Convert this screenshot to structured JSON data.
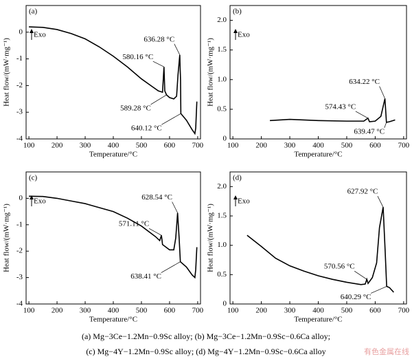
{
  "chart_data": [
    {
      "type": "line",
      "panel_label": "(a)",
      "direction_label": "Exo",
      "x_label": "Temperature/°C",
      "y_label": "Heat flow/(mW·mg⁻¹)",
      "color": "#000000",
      "x": [
        100,
        150,
        200,
        250,
        300,
        350,
        400,
        450,
        500,
        540,
        560,
        575,
        580.16,
        583,
        589.28,
        600,
        615,
        625,
        630,
        636.28,
        639,
        640.12,
        660,
        680,
        690,
        693,
        697
      ],
      "values": [
        0.2,
        0.18,
        0.1,
        -0.05,
        -0.25,
        -0.55,
        -0.9,
        -1.3,
        -1.75,
        -2.05,
        -2.2,
        -2.25,
        -1.3,
        -2.2,
        -2.35,
        -2.45,
        -2.5,
        -2.4,
        -1.6,
        -0.85,
        -1.8,
        -3.05,
        -3.3,
        -3.65,
        -3.8,
        -3.6,
        -2.6
      ],
      "xlim": [
        90,
        710
      ],
      "xticks": [
        100,
        200,
        300,
        400,
        500,
        600,
        700
      ],
      "ylim": [
        -4,
        1
      ],
      "yticks": [
        -4,
        -3,
        -2,
        -1,
        0
      ],
      "annotations": [
        "636.28 °C",
        "580.16 °C",
        "589.28 °C",
        "640.12 °C"
      ]
    },
    {
      "type": "line",
      "panel_label": "(b)",
      "direction_label": "Exo",
      "x_label": "Temperature/°C",
      "y_label": "Heat flow/(mW·mg⁻¹)",
      "color": "#000000",
      "x": [
        230,
        300,
        400,
        500,
        560,
        574.43,
        580,
        600,
        620,
        634.22,
        639.47,
        650,
        670
      ],
      "values": [
        0.31,
        0.33,
        0.31,
        0.3,
        0.3,
        0.35,
        0.29,
        0.3,
        0.38,
        0.68,
        0.28,
        0.29,
        0.32
      ],
      "xlim": [
        90,
        710
      ],
      "xticks": [
        100,
        200,
        300,
        400,
        500,
        600,
        700
      ],
      "ylim": [
        0,
        2.25
      ],
      "yticks": [
        0,
        {
          "value": 0.5,
          "label": "0.5"
        },
        {
          "value": 1,
          "label": "1.0"
        },
        {
          "value": 1.5,
          "label": "1.5"
        },
        {
          "value": 2,
          "label": "2.0"
        }
      ],
      "annotations": [
        "634.22 °C",
        "574.43 °C",
        "639.47 °C"
      ]
    },
    {
      "type": "line",
      "panel_label": "(c)",
      "direction_label": "Exo",
      "x_label": "Temperature/°C",
      "y_label": "Heat flow/(mW·mg⁻¹)",
      "color": "#000000",
      "x": [
        100,
        150,
        200,
        250,
        300,
        350,
        400,
        450,
        500,
        550,
        565,
        571.11,
        575,
        600,
        615,
        622,
        628.54,
        634,
        638.41,
        660,
        680,
        690,
        693,
        697
      ],
      "values": [
        0.08,
        0.07,
        0.0,
        -0.1,
        -0.2,
        -0.35,
        -0.5,
        -0.75,
        -1.05,
        -1.45,
        -1.6,
        -1.4,
        -1.75,
        -1.95,
        -1.95,
        -1.5,
        -0.55,
        -1.5,
        -2.4,
        -2.6,
        -2.9,
        -3.0,
        -2.7,
        -1.85
      ],
      "xlim": [
        90,
        710
      ],
      "xticks": [
        100,
        200,
        300,
        400,
        500,
        600,
        700
      ],
      "ylim": [
        -4,
        1
      ],
      "yticks": [
        -4,
        -3,
        -2,
        -1,
        0
      ],
      "annotations": [
        "628.54 °C",
        "571.11 °C",
        "638.41 °C"
      ]
    },
    {
      "type": "line",
      "panel_label": "(d)",
      "direction_label": "Exo",
      "x_label": "Temperature/°C",
      "y_label": "Heat flow/(mW·mg⁻¹)",
      "color": "#000000",
      "x": [
        150,
        200,
        250,
        300,
        350,
        400,
        450,
        500,
        550,
        565,
        570.56,
        575,
        590,
        605,
        615,
        627.92,
        635,
        640.29,
        650,
        665
      ],
      "values": [
        1.17,
        0.98,
        0.78,
        0.65,
        0.56,
        0.48,
        0.42,
        0.37,
        0.33,
        0.34,
        0.42,
        0.35,
        0.45,
        0.7,
        1.3,
        1.65,
        0.9,
        0.3,
        0.28,
        0.2
      ],
      "xlim": [
        90,
        710
      ],
      "xticks": [
        100,
        200,
        300,
        400,
        500,
        600,
        700
      ],
      "ylim": [
        0,
        2.25
      ],
      "yticks": [
        0,
        {
          "value": 0.5,
          "label": "0.5"
        },
        {
          "value": 1,
          "label": "1.0"
        },
        {
          "value": 1.5,
          "label": "1.5"
        },
        {
          "value": 2,
          "label": "2.0"
        }
      ],
      "annotations": [
        "627.92 °C",
        "570.56 °C",
        "640.29 °C"
      ]
    }
  ],
  "caption": [
    "(a) Mg−3Ce−1.2Mn−0.9Sc alloy; (b) Mg−3Ce−1.2Mn−0.9Sc−0.6Ca alloy;",
    "(c) Mg−4Y−1.2Mn−0.9Sc alloy; (d) Mg−4Y−1.2Mn−0.9Sc−0.6Ca alloy"
  ],
  "watermark": "有色金属在线"
}
